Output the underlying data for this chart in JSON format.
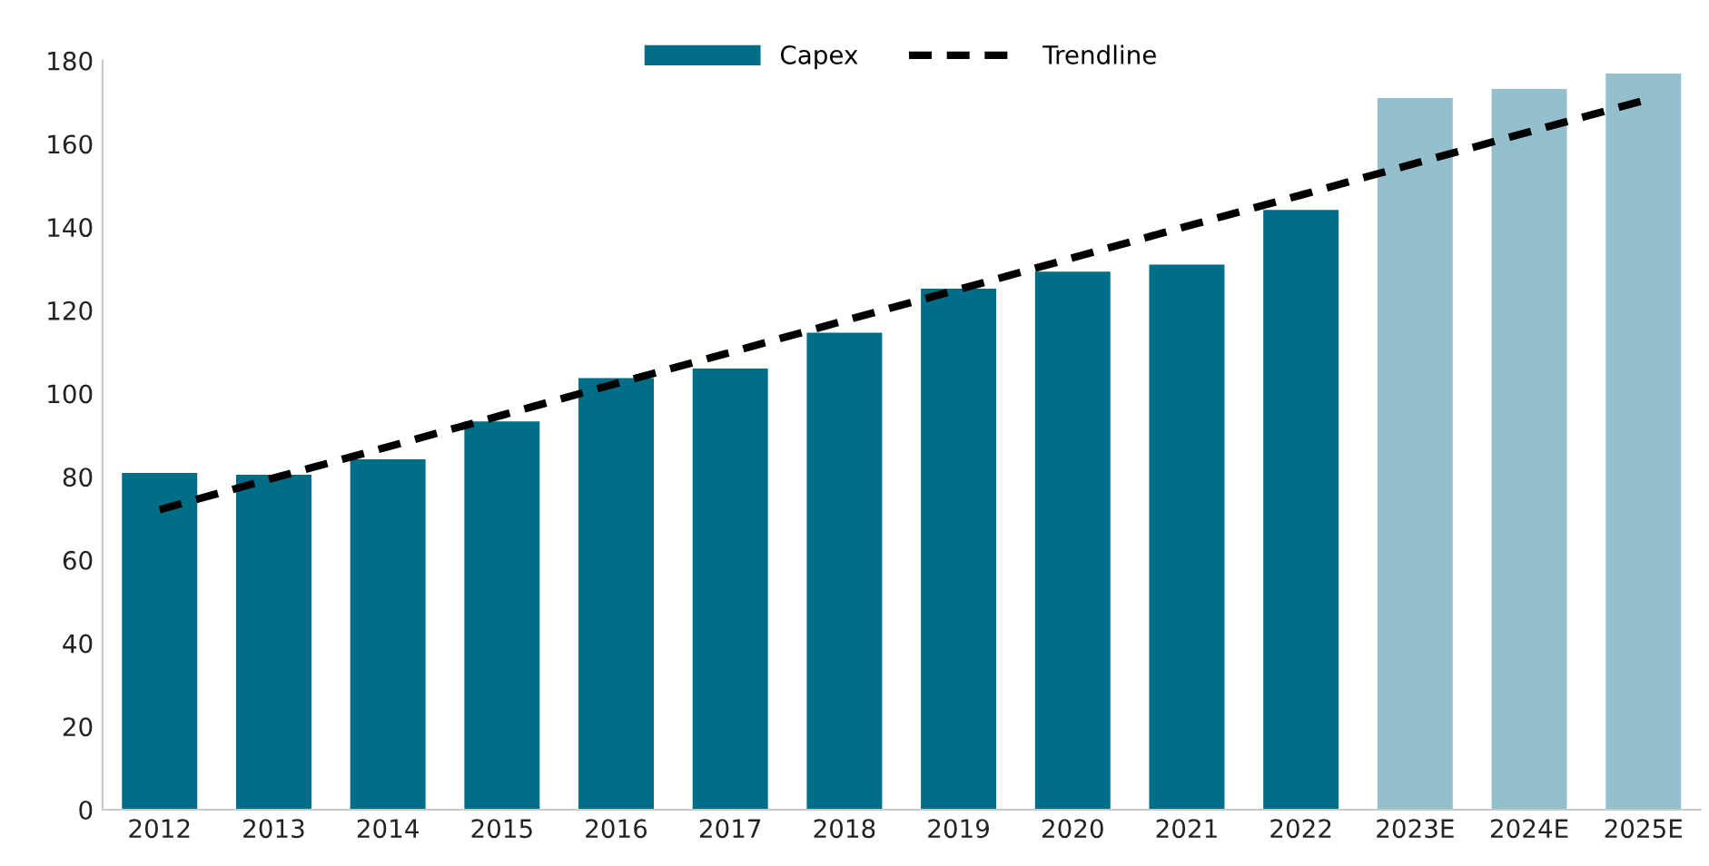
{
  "chart_data": {
    "type": "bar",
    "categories": [
      "2012",
      "2013",
      "2014",
      "2015",
      "2016",
      "2017",
      "2018",
      "2019",
      "2020",
      "2021",
      "2022",
      "2023E",
      "2024E",
      "2025E"
    ],
    "series": [
      {
        "name": "Capex",
        "color": "#006e87",
        "colors": [
          "#006e87",
          "#006e87",
          "#006e87",
          "#006e87",
          "#006e87",
          "#006e87",
          "#006e87",
          "#006e87",
          "#006e87",
          "#006e87",
          "#006e87",
          "#94c0cd",
          "#94c0cd",
          "#94c0cd"
        ],
        "values": [
          80.9,
          80.5,
          84.2,
          93.3,
          103.7,
          106.0,
          114.6,
          125.2,
          129.3,
          131.0,
          144.1,
          171,
          173.2,
          176.9
        ]
      },
      {
        "name": "Trendline",
        "type": "line",
        "color": "#000000",
        "line_style": "dashed",
        "values": [
          72.1,
          79.7,
          87.2,
          94.8,
          102.4,
          109.9,
          117.5,
          125.0,
          132.6,
          140.2,
          147.7,
          155.3,
          162.9,
          170.4
        ]
      }
    ],
    "ylim": [
      0,
      180
    ],
    "yticks": [
      0,
      20,
      40,
      60,
      80,
      100,
      120,
      140,
      160,
      180
    ],
    "grid": false,
    "legend": "top"
  }
}
